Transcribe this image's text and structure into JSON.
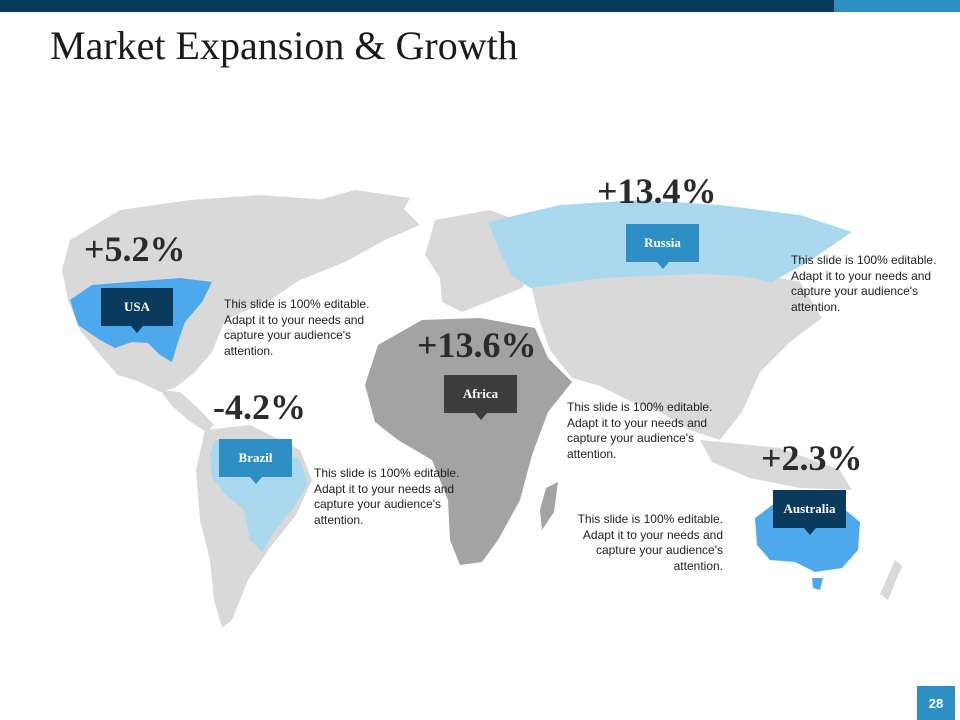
{
  "slide": {
    "title": "Market Expansion & Growth",
    "page_number": "28"
  },
  "colors": {
    "dark_navy": "#0b3b5c",
    "accent_blue": "#2e8fc4",
    "sky_blue": "#4da9ec",
    "light_blue": "#a9d8ef",
    "land_gray": "#d9d9d9",
    "africa_gray": "#a3a3a3"
  },
  "regions": [
    {
      "name": "USA",
      "growth": "+5.2%",
      "description": "This slide is 100% editable. Adapt it to your needs and capture your audience's attention."
    },
    {
      "name": "Brazil",
      "growth": "-4.2%",
      "description": "This slide is 100% editable. Adapt it to your needs and capture your audience's attention."
    },
    {
      "name": "Africa",
      "growth": "+13.6%",
      "description": "This slide is 100% editable. Adapt it to your needs and capture your audience's attention."
    },
    {
      "name": "Russia",
      "growth": "+13.4%",
      "description": "This slide is 100% editable. Adapt it to your needs and capture your audience's attention."
    },
    {
      "name": "Australia",
      "growth": "+2.3%",
      "description": "This slide is 100% editable. Adapt it to your needs and capture your audience's attention."
    }
  ]
}
